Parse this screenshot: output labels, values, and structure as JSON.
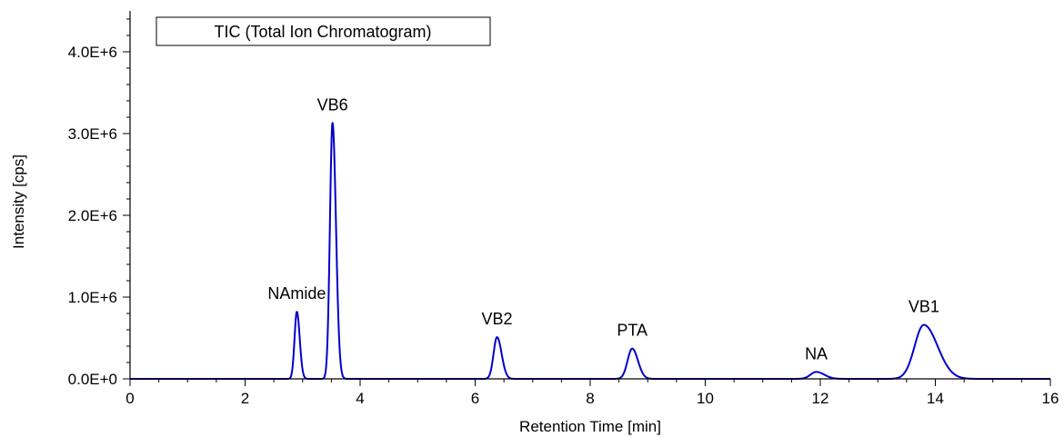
{
  "chart_data": {
    "type": "line",
    "xlabel": "Retention Time [min]",
    "ylabel": "Intensity [cps]",
    "xlim": [
      0,
      16
    ],
    "ylim": [
      0,
      4500000
    ],
    "x_ticks": [
      0,
      2,
      4,
      6,
      8,
      10,
      12,
      14,
      16
    ],
    "x_tick_labels": [
      "0",
      "2",
      "4",
      "6",
      "8",
      "10",
      "12",
      "14",
      "16"
    ],
    "y_ticks": [
      0,
      1000000,
      2000000,
      3000000,
      4000000
    ],
    "y_tick_labels": [
      "0.0E+0",
      "1.0E+6",
      "2.0E+6",
      "3.0E+6",
      "4.0E+6"
    ],
    "grid": false,
    "legend": {
      "position": "top-left",
      "entries": [
        "TIC (Total Ion Chromatogram)"
      ]
    },
    "series_color": "#0000cc",
    "peaks": [
      {
        "label": "NAmide",
        "rt": 2.9,
        "height": 820000,
        "width_min": 0.04,
        "tail_min": 0.05
      },
      {
        "label": "VB6",
        "rt": 3.52,
        "height": 3130000,
        "width_min": 0.045,
        "tail_min": 0.06
      },
      {
        "label": "VB2",
        "rt": 6.38,
        "height": 510000,
        "width_min": 0.06,
        "tail_min": 0.08
      },
      {
        "label": "PTA",
        "rt": 8.73,
        "height": 370000,
        "width_min": 0.08,
        "tail_min": 0.1
      },
      {
        "label": "NA",
        "rt": 11.93,
        "height": 85000,
        "width_min": 0.1,
        "tail_min": 0.14
      },
      {
        "label": "VB1",
        "rt": 13.8,
        "height": 660000,
        "width_min": 0.16,
        "tail_min": 0.24
      }
    ]
  }
}
